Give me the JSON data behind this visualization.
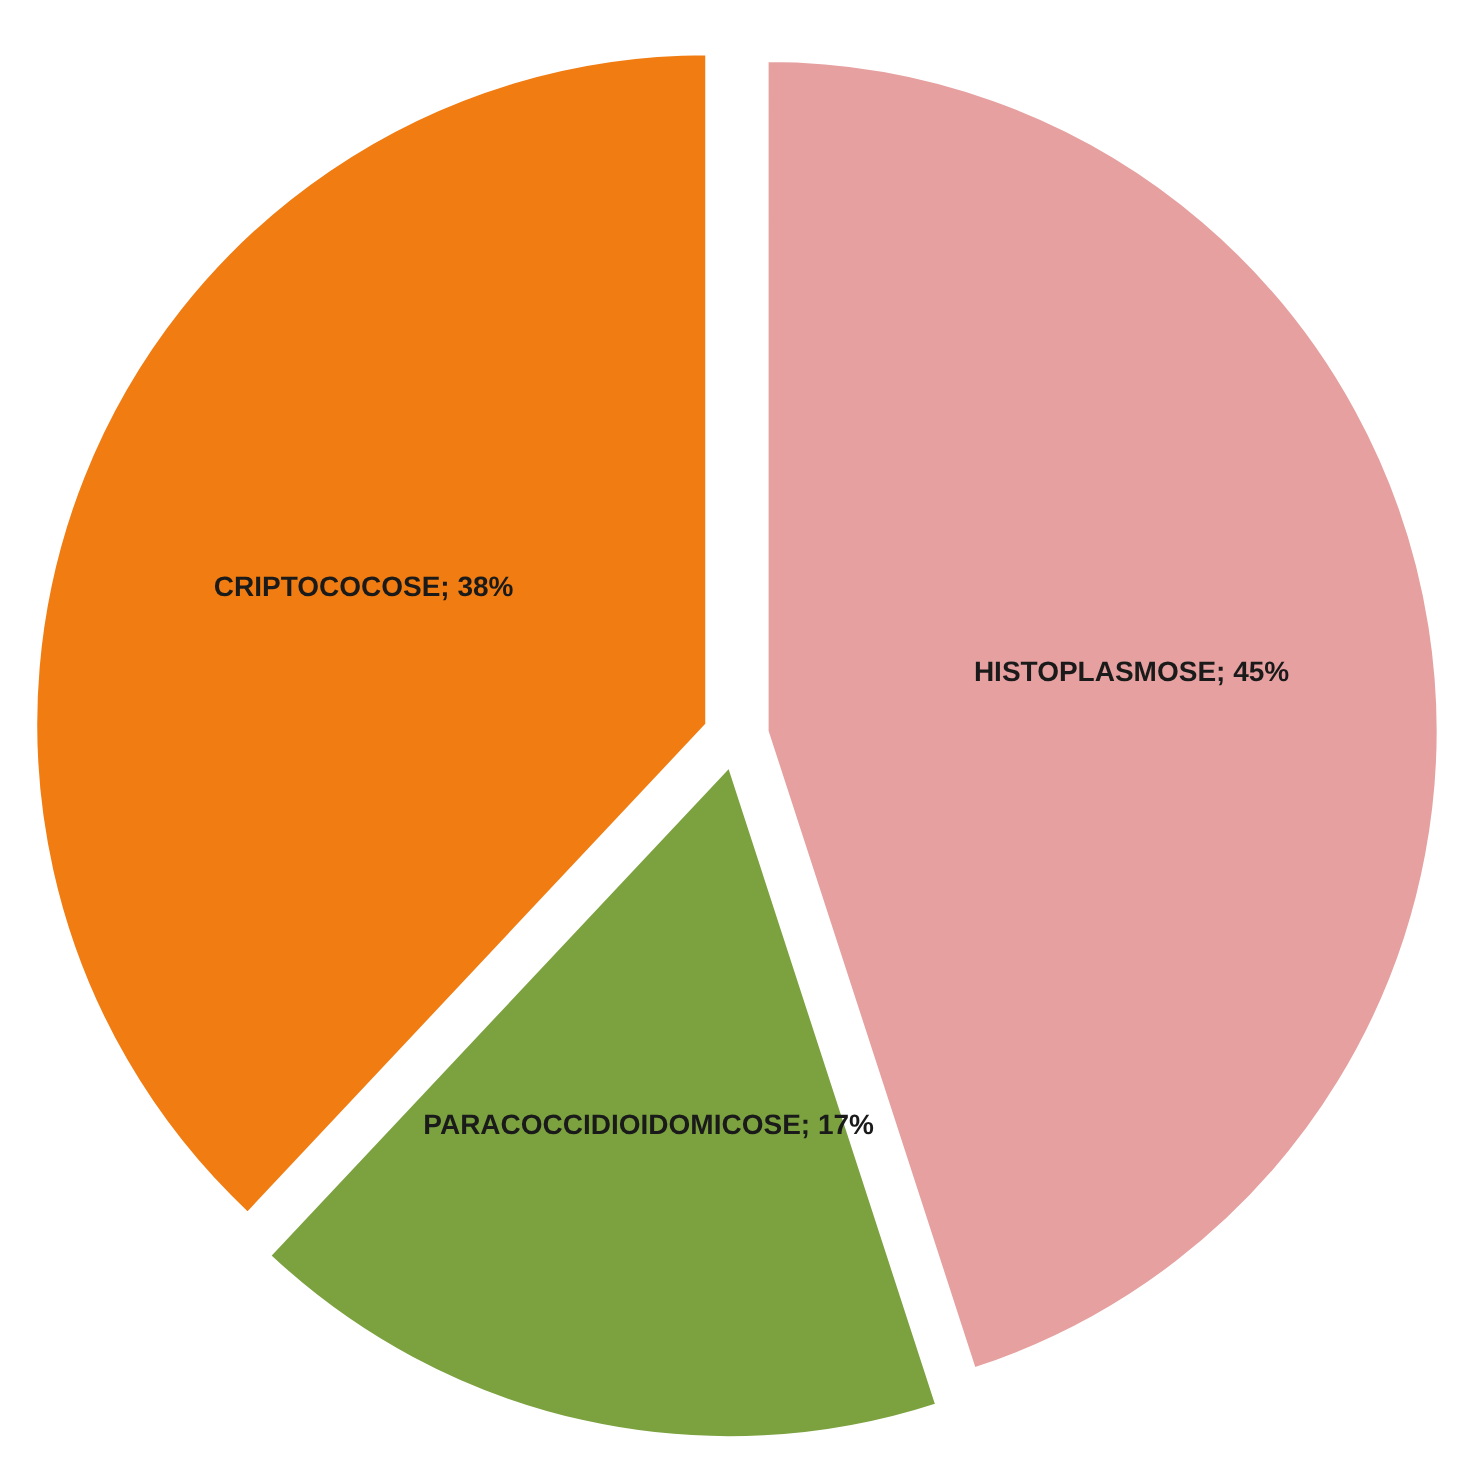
{
  "chart_data": {
    "type": "pie",
    "categories": [
      "HISTOPLASMOSE",
      "PARACOCCIDIOIDOMICOSE",
      "CRIPTOCOCOSE"
    ],
    "values": [
      45,
      17,
      38
    ],
    "value_labels": [
      "45%",
      "17%",
      "38%"
    ],
    "colors": [
      "#e6a0a0",
      "#7ba23f",
      "#f07c12"
    ]
  }
}
